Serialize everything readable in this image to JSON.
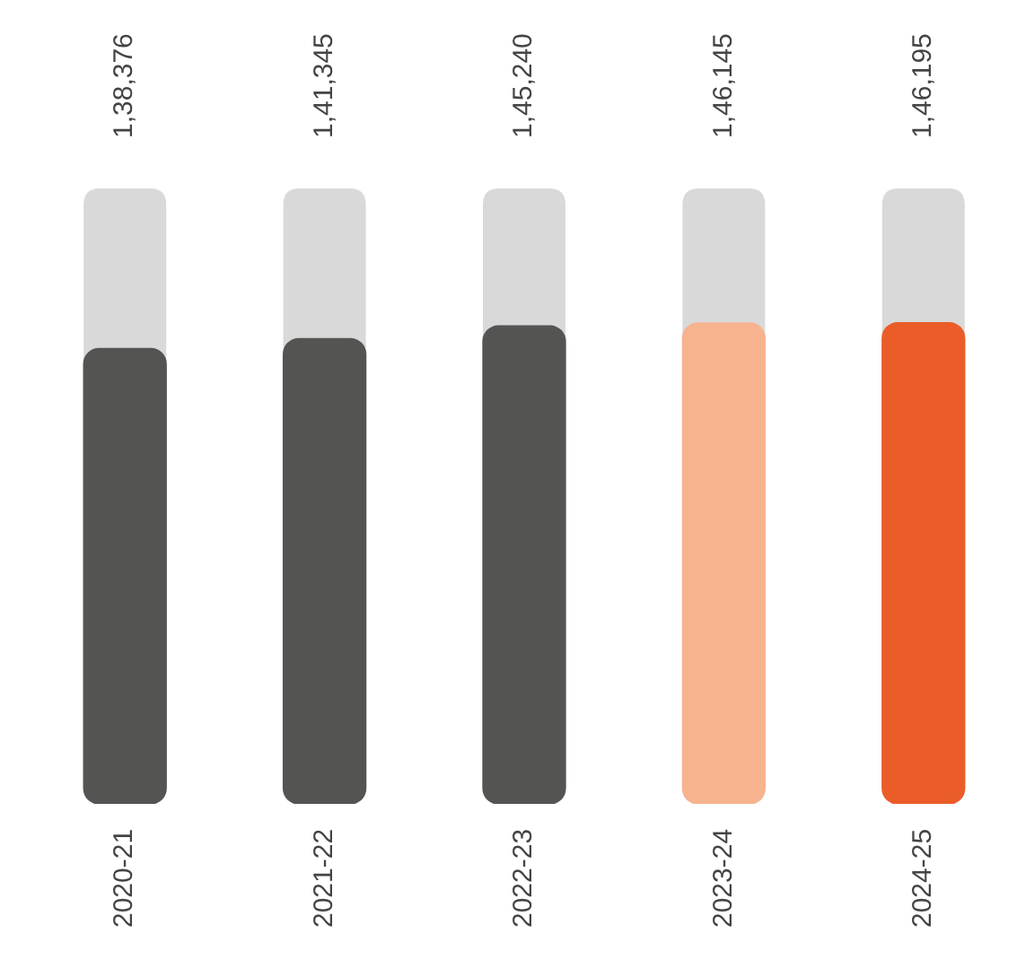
{
  "chart_data": {
    "type": "bar",
    "categories": [
      "2020-21",
      "2021-22",
      "2022-23",
      "2023-24",
      "2024-25"
    ],
    "values": [
      138376,
      141345,
      145240,
      146145,
      146195
    ],
    "colors": [
      "#545452",
      "#545452",
      "#545452",
      "#f7b38e",
      "#ea5d28"
    ],
    "value_labels": [
      "1,38,376",
      "1,41,345",
      "1,45,240",
      "1,46,145",
      "1,46,195"
    ],
    "ylim": [
      0,
      187000
    ],
    "tick_labels": "x",
    "grid": false,
    "legend": false
  }
}
